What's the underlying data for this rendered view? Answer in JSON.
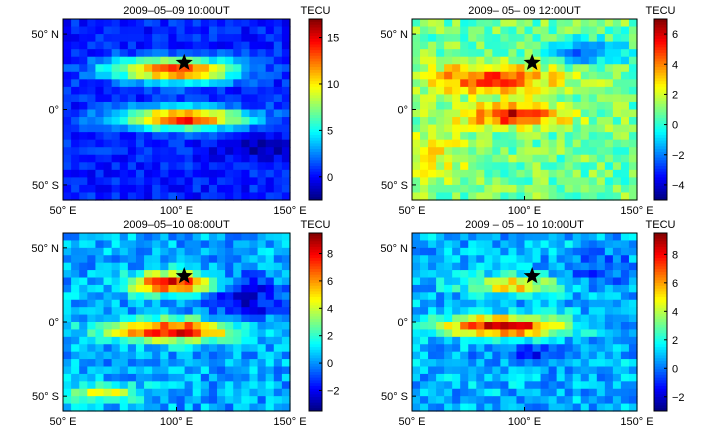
{
  "chart_data": [
    {
      "type": "heatmap",
      "title": "2009–05–09 10:00UT",
      "colorbar_label": "TECU",
      "colorbar_ticks": [
        0,
        5,
        10,
        15
      ],
      "colorbar_tick_labels": [
        "0",
        "5",
        "10",
        "15"
      ],
      "clim": [
        -2.5,
        17
      ],
      "xticks": [
        50,
        100,
        150
      ],
      "xtick_labels": [
        "50° E",
        "100° E",
        "150° E"
      ],
      "yticks": [
        50,
        0,
        -50
      ],
      "ytick_labels": [
        "50° N",
        "0°",
        "50° S"
      ],
      "xlim": [
        50,
        150
      ],
      "ylim": [
        -60,
        60
      ],
      "epicenter": {
        "lon": 103.4,
        "lat": 31.0,
        "marker": "star"
      },
      "blobs": [
        {
          "lon": 100,
          "lat": 26,
          "rlon": 26,
          "rlat": 8,
          "amp": 13
        },
        {
          "lon": 103,
          "lat": -6,
          "rlon": 28,
          "rlat": 7,
          "amp": 14
        },
        {
          "lon": 70,
          "lat": 28,
          "rlon": 10,
          "rlat": 6,
          "amp": 2
        },
        {
          "lon": 135,
          "lat": -25,
          "rlon": 18,
          "rlat": 10,
          "amp": -2
        }
      ],
      "base": 0.5
    },
    {
      "type": "heatmap",
      "title": "2009– 05– 09 12:00UT",
      "colorbar_label": "TECU",
      "colorbar_ticks": [
        -4,
        -2,
        0,
        2,
        4,
        6
      ],
      "colorbar_tick_labels": [
        "−4",
        "−2",
        "0",
        "2",
        "4",
        "6"
      ],
      "clim": [
        -5,
        7
      ],
      "xticks": [
        50,
        100,
        150
      ],
      "xtick_labels": [
        "50° E",
        "100° E",
        "150° E"
      ],
      "yticks": [
        50,
        0,
        -50
      ],
      "ytick_labels": [
        "50° N",
        "0°",
        "50° S"
      ],
      "xlim": [
        50,
        150
      ],
      "ylim": [
        -60,
        60
      ],
      "epicenter": {
        "lon": 103.4,
        "lat": 31.0,
        "marker": "star"
      },
      "blobs": [
        {
          "lon": 85,
          "lat": 20,
          "rlon": 30,
          "rlat": 10,
          "amp": 4
        },
        {
          "lon": 96,
          "lat": -4,
          "rlon": 22,
          "rlat": 7,
          "amp": 5
        },
        {
          "lon": 128,
          "lat": 38,
          "rlon": 18,
          "rlat": 8,
          "amp": -3
        },
        {
          "lon": 60,
          "lat": -30,
          "rlon": 20,
          "rlat": 20,
          "amp": 1.5
        }
      ],
      "base": 0.8
    },
    {
      "type": "heatmap",
      "title": "2009–05–10 08:00UT",
      "colorbar_label": "TECU",
      "colorbar_ticks": [
        -2,
        0,
        2,
        4,
        6,
        8
      ],
      "colorbar_tick_labels": [
        "−2",
        "0",
        "2",
        "4",
        "6",
        "8"
      ],
      "clim": [
        -3.5,
        9.5
      ],
      "xticks": [
        50,
        100,
        150
      ],
      "xtick_labels": [
        "50° E",
        "100° E",
        "150° E"
      ],
      "yticks": [
        50,
        0,
        -50
      ],
      "ytick_labels": [
        "50° N",
        "0°",
        "50° S"
      ],
      "xlim": [
        50,
        150
      ],
      "ylim": [
        -60,
        60
      ],
      "epicenter": {
        "lon": 103.4,
        "lat": 31.0,
        "marker": "star"
      },
      "blobs": [
        {
          "lon": 98,
          "lat": 26,
          "rlon": 18,
          "rlat": 7,
          "amp": 8
        },
        {
          "lon": 98,
          "lat": -6,
          "rlon": 28,
          "rlat": 7,
          "amp": 8
        },
        {
          "lon": 68,
          "lat": -48,
          "rlon": 16,
          "rlat": 6,
          "amp": 4
        },
        {
          "lon": 130,
          "lat": 15,
          "rlon": 15,
          "rlat": 15,
          "amp": -3
        }
      ],
      "base": 0.3
    },
    {
      "type": "heatmap",
      "title": "2009 – 05 – 10 10:00UT",
      "colorbar_label": "TECU",
      "colorbar_ticks": [
        -2,
        0,
        2,
        4,
        6,
        8
      ],
      "colorbar_tick_labels": [
        "−2",
        "0",
        "2",
        "4",
        "6",
        "8"
      ],
      "clim": [
        -3,
        9.5
      ],
      "xticks": [
        50,
        100,
        150
      ],
      "xtick_labels": [
        "50° E",
        "100° E",
        "150° E"
      ],
      "yticks": [
        50,
        0,
        -50
      ],
      "ytick_labels": [
        "50° N",
        "0°",
        "50° S"
      ],
      "xlim": [
        50,
        150
      ],
      "ylim": [
        -60,
        60
      ],
      "epicenter": {
        "lon": 103.4,
        "lat": 31.0,
        "marker": "star"
      },
      "blobs": [
        {
          "lon": 95,
          "lat": 25,
          "rlon": 20,
          "rlat": 6,
          "amp": 5
        },
        {
          "lon": 90,
          "lat": -3,
          "rlon": 26,
          "rlat": 7,
          "amp": 8
        },
        {
          "lon": 105,
          "lat": -22,
          "rlon": 20,
          "rlat": 6,
          "amp": -2
        },
        {
          "lon": 135,
          "lat": 35,
          "rlon": 15,
          "rlat": 10,
          "amp": -1.5
        }
      ],
      "base": 0.8
    }
  ]
}
